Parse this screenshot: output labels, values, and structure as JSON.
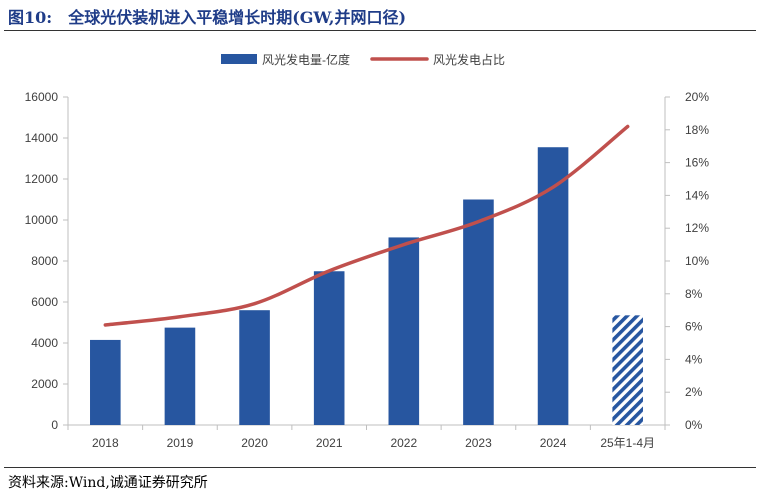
{
  "figure": {
    "label": "图10:",
    "title": "全球光伏装机进入平稳增长时期(GW,并网口径)"
  },
  "source": "资料来源:Wind,诚通证券研究所",
  "colors": {
    "bar": "#2756a0",
    "line": "#c0504d",
    "axis": "#bfbfbf",
    "text": "#404040"
  },
  "chart_data": {
    "type": "bar+line",
    "categories": [
      "2018",
      "2019",
      "2020",
      "2021",
      "2022",
      "2023",
      "2024",
      "25年1-4月"
    ],
    "series": [
      {
        "name": "风光发电量-亿度",
        "type": "bar",
        "axis": "left",
        "values": [
          4150,
          4750,
          5600,
          7500,
          9150,
          11000,
          13550,
          5350
        ],
        "estimated_last": true
      },
      {
        "name": "风光发电占比",
        "type": "line",
        "axis": "right",
        "values": [
          6.1,
          6.6,
          7.4,
          9.4,
          11.0,
          12.4,
          14.5,
          18.2
        ]
      }
    ],
    "y_left": {
      "min": 0,
      "max": 16000,
      "ticks": [
        0,
        2000,
        4000,
        6000,
        8000,
        10000,
        12000,
        14000,
        16000
      ]
    },
    "y_right": {
      "min": 0,
      "max": 20,
      "ticks": [
        "0%",
        "2%",
        "4%",
        "6%",
        "8%",
        "10%",
        "12%",
        "14%",
        "16%",
        "18%",
        "20%"
      ]
    },
    "legend_position": "top"
  }
}
